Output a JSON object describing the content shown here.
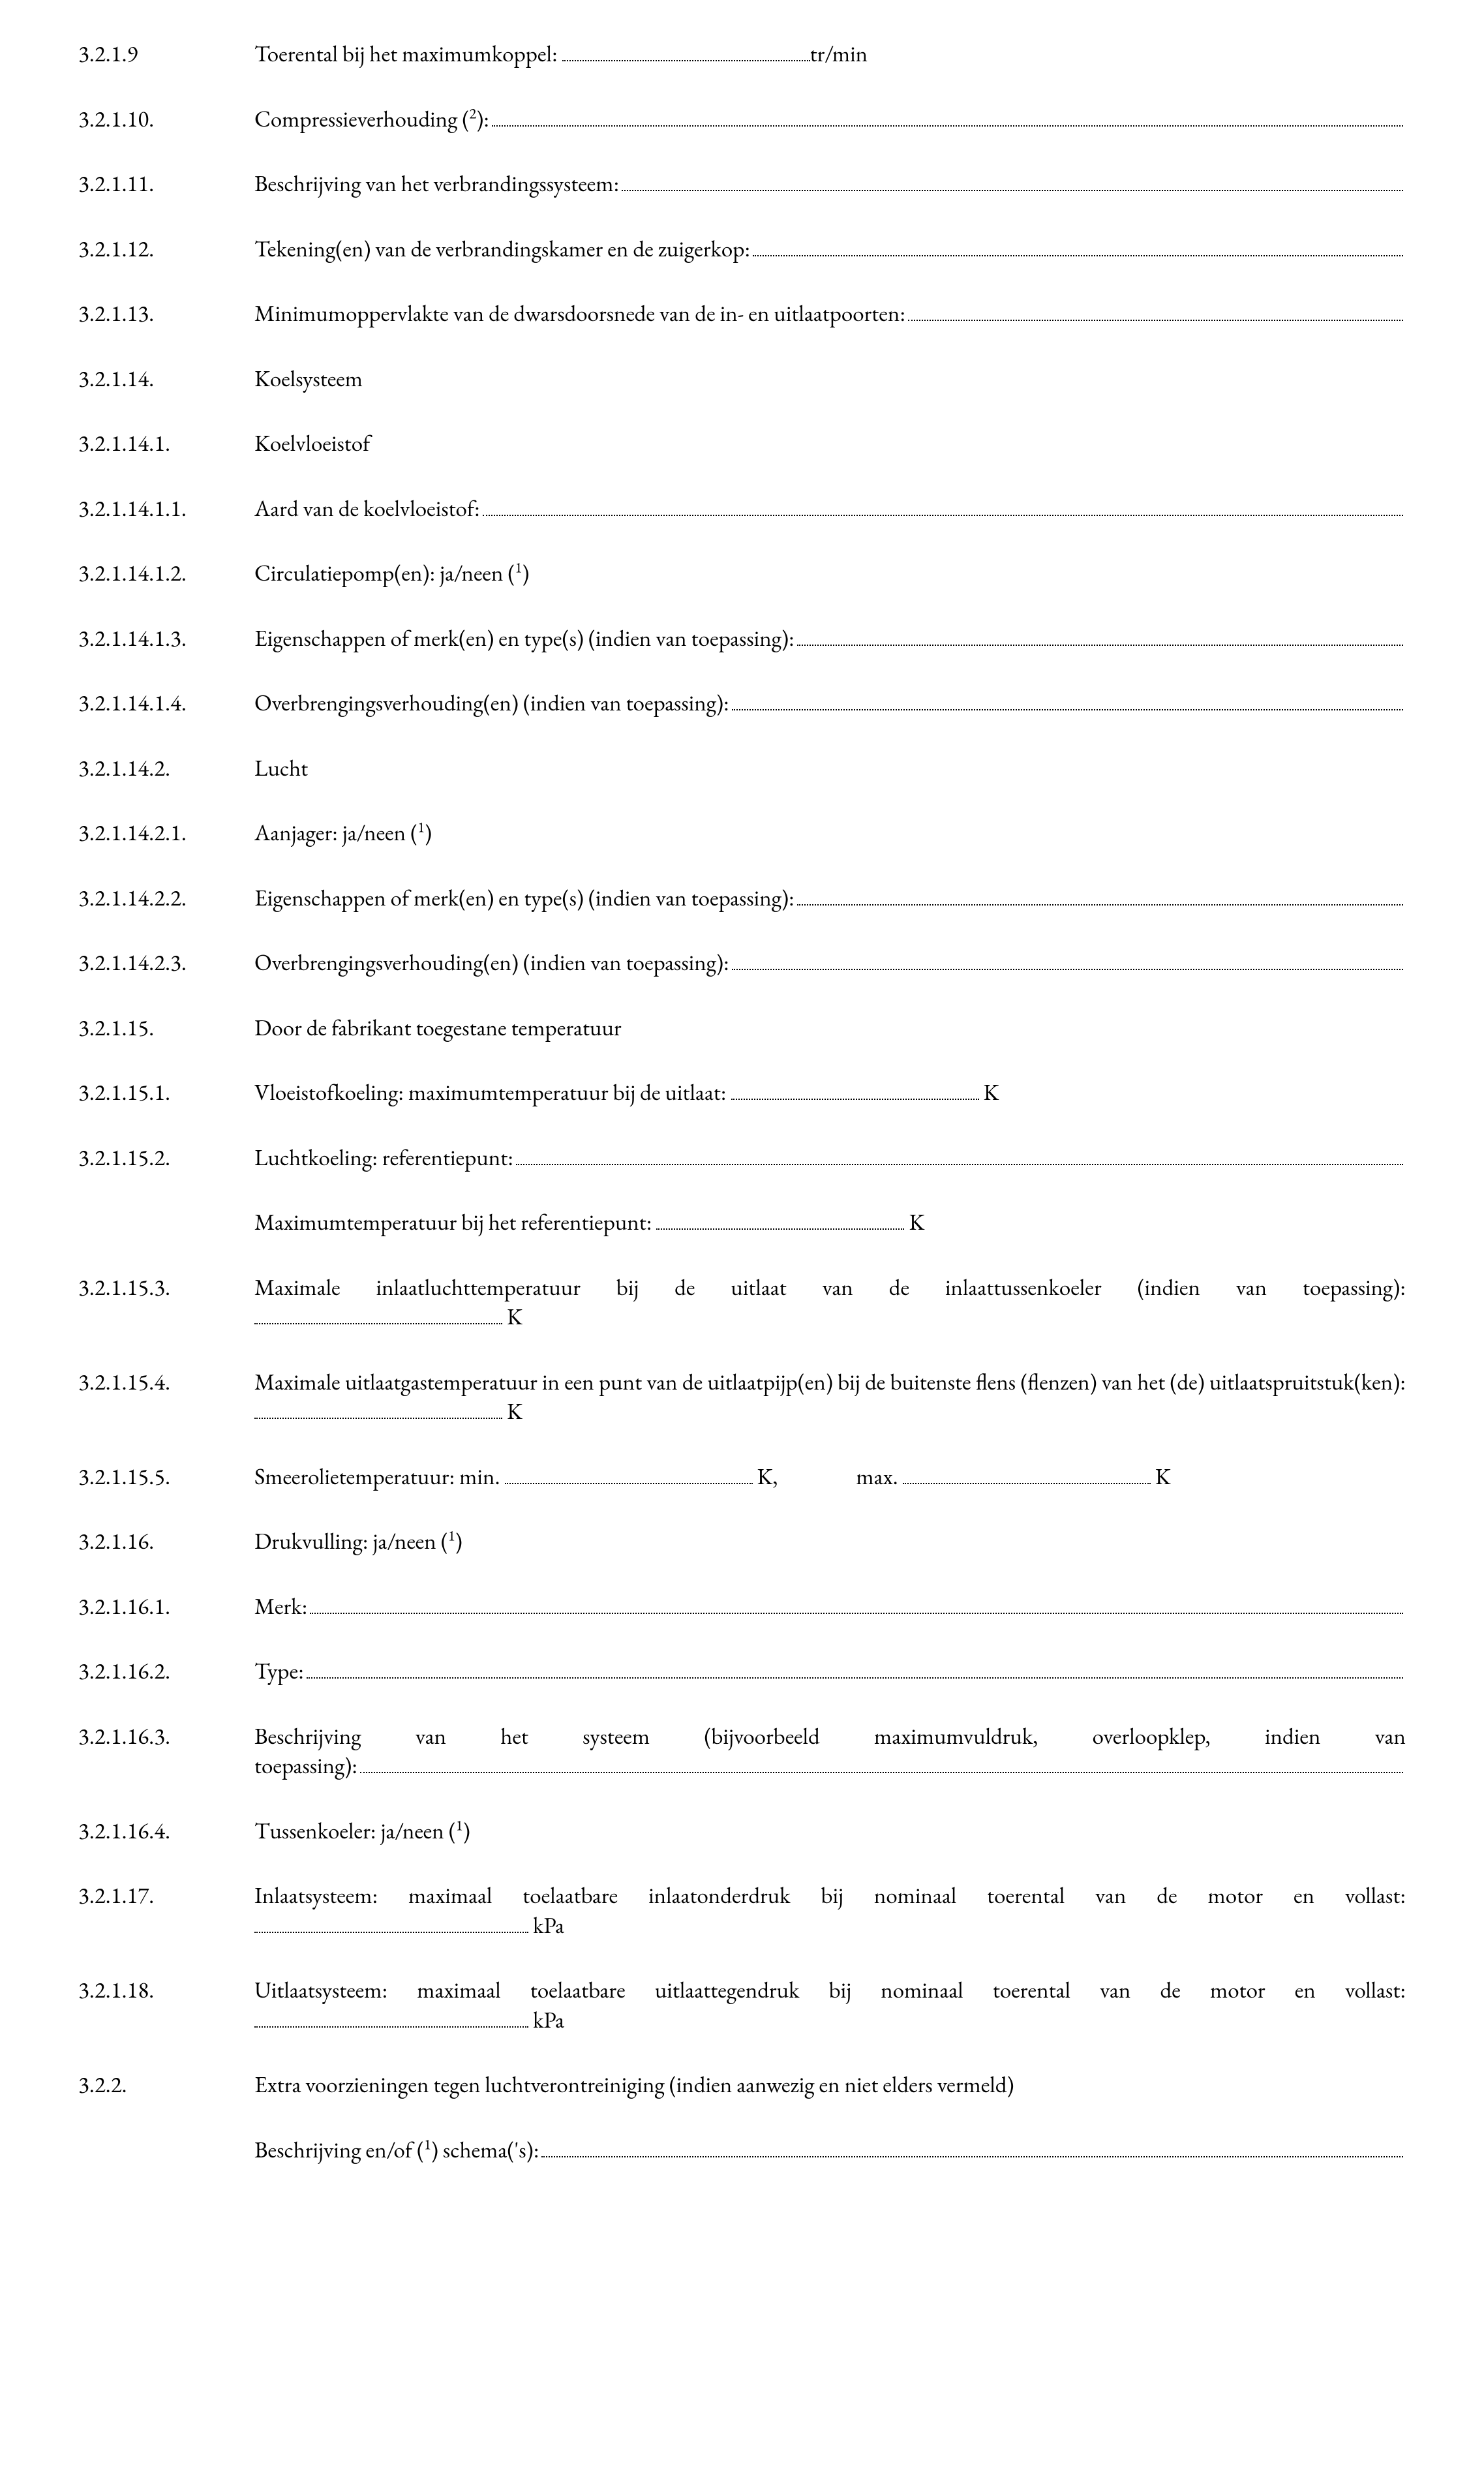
{
  "items": [
    {
      "num": "3.2.1.9",
      "pre": "Toerental bij het maximumkoppel: ",
      "mode": "fixed",
      "dotsW": 380,
      "post": "tr/min"
    },
    {
      "num": "3.2.1.10.",
      "mode": "fill",
      "preHtml": "Compressieverhouding (<sup>2</sup>): "
    },
    {
      "num": "3.2.1.11.",
      "pre": "Beschrijving van het verbrandingssysteem: ",
      "mode": "fill"
    },
    {
      "num": "3.2.1.12.",
      "pre": "Tekening(en) van de verbrandingskamer en de zuigerkop: ",
      "mode": "fill"
    },
    {
      "num": "3.2.1.13.",
      "pre": "Minimumoppervlakte van de dwarsdoorsnede van de in- en uitlaatpoorten: ",
      "mode": "fill"
    },
    {
      "num": "3.2.1.14.",
      "pre": "Koelsysteem",
      "mode": "plain"
    },
    {
      "num": "3.2.1.14.1.",
      "pre": "Koelvloeistof",
      "mode": "plain"
    },
    {
      "num": "3.2.1.14.1.1.",
      "pre": "Aard van de koelvloeistof: ",
      "mode": "fill"
    },
    {
      "num": "3.2.1.14.1.2.",
      "mode": "plain",
      "preHtml": "Circulatiepomp(en): ja/neen (<sup>1</sup>)"
    },
    {
      "num": "3.2.1.14.1.3.",
      "pre": "Eigenschappen of merk(en) en type(s) (indien van toepassing): ",
      "mode": "fill"
    },
    {
      "num": "3.2.1.14.1.4.",
      "pre": "Overbrengingsverhouding(en) (indien van toepassing): ",
      "mode": "fill"
    },
    {
      "num": "3.2.1.14.2.",
      "pre": "Lucht",
      "mode": "plain"
    },
    {
      "num": "3.2.1.14.2.1.",
      "mode": "plain",
      "preHtml": "Aanjager: ja/neen (<sup>1</sup>)"
    },
    {
      "num": "3.2.1.14.2.2.",
      "pre": "Eigenschappen of merk(en) en type(s) (indien van toepassing): ",
      "mode": "fill"
    },
    {
      "num": "3.2.1.14.2.3.",
      "pre": "Overbrengingsverhouding(en) (indien van toepassing): ",
      "mode": "fill"
    },
    {
      "num": "3.2.1.15.",
      "pre": "Door de fabrikant toegestane temperatuur",
      "mode": "plain"
    },
    {
      "num": "3.2.1.15.1.",
      "pre": "Vloeistofkoeling: maximumtemperatuur bij de uitlaat: ",
      "mode": "fixed",
      "dotsW": 380,
      "post": " K"
    },
    {
      "num": "3.2.1.15.2.",
      "pre": "Luchtkoeling: referentiepunt: ",
      "mode": "fill",
      "extra": {
        "pre": "Maximumtemperatuur bij het referentiepunt: ",
        "mode": "fixed",
        "dotsW": 380,
        "post": " K"
      }
    },
    {
      "num": "3.2.1.15.3.",
      "mode": "block-then-dots",
      "text": "Maximale inlaatluchttemperatuur bij de uitlaat van de inlaattussenkoeler (indien van toepassing):",
      "dotsW": 380,
      "post": " K"
    },
    {
      "num": "3.2.1.15.4.",
      "mode": "block-then-dots",
      "text": "Maximale uitlaatgastemperatuur in een punt van de uitlaatpijp(en) bij de buitenste flens (flenzen) van het (de) uitlaatspruitstuk(ken): ",
      "inline": true,
      "dotsW": 380,
      "post": " K"
    },
    {
      "num": "3.2.1.15.5.",
      "mode": "oil",
      "pre": "Smeerolietemperatuur: min.  ",
      "dotsW1": 380,
      "mid1": " K,",
      "gap": 120,
      "mid2": "max.  ",
      "dotsW2": 380,
      "post": " K"
    },
    {
      "num": "3.2.1.16.",
      "mode": "plain",
      "preHtml": "Drukvulling: ja/neen (<sup>1</sup>)"
    },
    {
      "num": "3.2.1.16.1.",
      "pre": "Merk: ",
      "mode": "fill"
    },
    {
      "num": "3.2.1.16.2.",
      "pre": "Type: ",
      "mode": "fill"
    },
    {
      "num": "3.2.1.16.3.",
      "mode": "justify-fill",
      "text": "Beschrijving van het systeem (bijvoorbeeld maximumvuldruk, overloopklep, indien van toepassing): "
    },
    {
      "num": "3.2.1.16.4.",
      "mode": "plain",
      "preHtml": "Tussenkoeler: ja/neen (<sup>1</sup>)"
    },
    {
      "num": "3.2.1.17.",
      "mode": "block-then-dots",
      "text": "Inlaatsysteem: maximaal toelaatbare inlaatonderdruk bij nominaal toerental van de motor en vollast:",
      "dotsW": 420,
      "post": " kPa"
    },
    {
      "num": "3.2.1.18.",
      "mode": "block-then-dots",
      "text": "Uitlaatsysteem: maximaal toelaatbare uitlaattegendruk bij nominaal toerental van de motor en vollast:",
      "dotsW": 420,
      "post": " kPa"
    },
    {
      "num": "3.2.2.",
      "pre": "Extra voorzieningen tegen luchtverontreiniging (indien aanwezig en niet elders vermeld)",
      "mode": "plain",
      "extra": {
        "mode": "fill",
        "preHtml": "Beschrijving en/of (<sup>1</sup>) schema('s): "
      }
    }
  ]
}
